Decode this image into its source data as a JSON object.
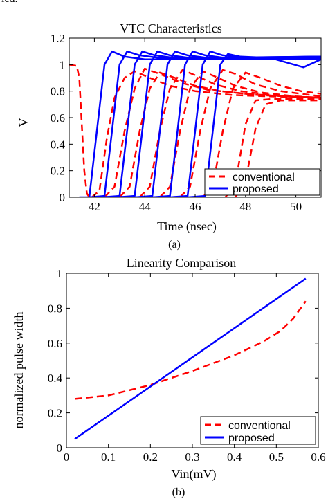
{
  "page": {
    "crop_text": "ied."
  },
  "chart_data": [
    {
      "type": "line",
      "title": "VTC Characteristics",
      "xlabel": "Time (nsec)",
      "ylabel": "V",
      "caption": "(a)",
      "xlim": [
        41,
        51
      ],
      "ylim": [
        0,
        1.2
      ],
      "xticks": [
        42,
        44,
        46,
        48,
        50
      ],
      "yticks": [
        0,
        0.2,
        0.4,
        0.6,
        0.8,
        1,
        1.2
      ],
      "xtick_labels": [
        "42",
        "44",
        "46",
        "48",
        "50"
      ],
      "ytick_labels": [
        "0",
        "0.2",
        "0.4",
        "0.6",
        "0.8",
        "1",
        "1.2"
      ],
      "legend": {
        "position": "bottom-right",
        "entries": [
          "conventional",
          "proposed"
        ]
      },
      "grid": false,
      "series": [
        {
          "name": "conventional",
          "color": "#ff0000",
          "dash": true,
          "curves": [
            [
              [
                41.0,
                1.0
              ],
              [
                41.3,
                0.99
              ],
              [
                41.4,
                0.9
              ],
              [
                41.5,
                0.55
              ],
              [
                41.6,
                0.2
              ],
              [
                41.7,
                0.03
              ],
              [
                41.8,
                0.0
              ],
              [
                41.9,
                0.0
              ]
            ],
            [
              [
                41.9,
                0.0
              ],
              [
                42.2,
                0.05
              ],
              [
                42.5,
                0.45
              ],
              [
                42.8,
                0.75
              ],
              [
                43.2,
                0.9
              ],
              [
                43.6,
                0.95
              ],
              [
                44.2,
                0.9
              ],
              [
                45.0,
                0.84
              ],
              [
                46.0,
                0.8
              ],
              [
                47.5,
                0.77
              ],
              [
                49.0,
                0.76
              ],
              [
                51.0,
                0.75
              ]
            ],
            [
              [
                42.4,
                0.0
              ],
              [
                42.8,
                0.08
              ],
              [
                43.2,
                0.5
              ],
              [
                43.6,
                0.82
              ],
              [
                44.0,
                0.97
              ],
              [
                44.6,
                0.93
              ],
              [
                45.5,
                0.86
              ],
              [
                46.5,
                0.81
              ],
              [
                48.0,
                0.78
              ],
              [
                49.5,
                0.76
              ],
              [
                51.0,
                0.75
              ]
            ],
            [
              [
                43.0,
                0.0
              ],
              [
                43.4,
                0.08
              ],
              [
                43.8,
                0.5
              ],
              [
                44.2,
                0.82
              ],
              [
                44.6,
                0.94
              ],
              [
                45.2,
                0.9
              ],
              [
                46.0,
                0.84
              ],
              [
                47.0,
                0.8
              ],
              [
                48.5,
                0.77
              ],
              [
                51.0,
                0.75
              ]
            ],
            [
              [
                43.8,
                0.0
              ],
              [
                44.2,
                0.08
              ],
              [
                44.6,
                0.5
              ],
              [
                45.0,
                0.82
              ],
              [
                45.5,
                0.96
              ],
              [
                46.0,
                0.92
              ],
              [
                46.8,
                0.85
              ],
              [
                47.8,
                0.8
              ],
              [
                49.5,
                0.76
              ],
              [
                51.0,
                0.75
              ]
            ],
            [
              [
                44.6,
                0.0
              ],
              [
                45.0,
                0.08
              ],
              [
                45.4,
                0.5
              ],
              [
                45.8,
                0.82
              ],
              [
                46.3,
                0.95
              ],
              [
                46.8,
                0.91
              ],
              [
                47.6,
                0.84
              ],
              [
                48.6,
                0.79
              ],
              [
                50.0,
                0.76
              ],
              [
                51.0,
                0.75
              ]
            ],
            [
              [
                45.4,
                0.0
              ],
              [
                45.8,
                0.08
              ],
              [
                46.2,
                0.5
              ],
              [
                46.6,
                0.82
              ],
              [
                47.1,
                0.96
              ],
              [
                47.6,
                0.93
              ],
              [
                48.4,
                0.85
              ],
              [
                49.4,
                0.8
              ],
              [
                51.0,
                0.76
              ]
            ],
            [
              [
                46.3,
                0.0
              ],
              [
                46.7,
                0.08
              ],
              [
                47.1,
                0.5
              ],
              [
                47.5,
                0.82
              ],
              [
                48.0,
                0.94
              ],
              [
                48.6,
                0.9
              ],
              [
                49.4,
                0.84
              ],
              [
                50.2,
                0.8
              ],
              [
                51.0,
                0.78
              ]
            ],
            [
              [
                47.2,
                0.0
              ],
              [
                47.6,
                0.1
              ],
              [
                48.0,
                0.55
              ],
              [
                48.4,
                0.73
              ],
              [
                49.0,
                0.74
              ],
              [
                51.0,
                0.74
              ]
            ],
            [
              [
                47.6,
                0.0
              ],
              [
                48.0,
                0.12
              ],
              [
                48.4,
                0.52
              ],
              [
                48.8,
                0.7
              ],
              [
                49.4,
                0.73
              ],
              [
                51.0,
                0.73
              ]
            ]
          ]
        },
        {
          "name": "proposed",
          "color": "#0000ff",
          "dash": false,
          "curves": [
            [
              [
                41.4,
                0.0
              ],
              [
                41.8,
                0.0
              ],
              [
                42.1,
                0.5
              ],
              [
                42.4,
                1.0
              ],
              [
                42.7,
                1.1
              ],
              [
                43.2,
                1.06
              ],
              [
                44.0,
                1.04
              ],
              [
                51.0,
                1.04
              ]
            ],
            [
              [
                41.8,
                0.0
              ],
              [
                42.4,
                0.01
              ],
              [
                42.7,
                0.5
              ],
              [
                43.0,
                1.0
              ],
              [
                43.3,
                1.1
              ],
              [
                43.8,
                1.07
              ],
              [
                44.6,
                1.05
              ],
              [
                51.0,
                1.05
              ]
            ],
            [
              [
                42.3,
                0.0
              ],
              [
                43.0,
                0.01
              ],
              [
                43.3,
                0.5
              ],
              [
                43.6,
                1.0
              ],
              [
                43.9,
                1.1
              ],
              [
                44.4,
                1.07
              ],
              [
                45.2,
                1.05
              ],
              [
                51.0,
                1.05
              ]
            ],
            [
              [
                42.9,
                0.0
              ],
              [
                43.6,
                0.01
              ],
              [
                43.9,
                0.5
              ],
              [
                44.2,
                1.0
              ],
              [
                44.5,
                1.1
              ],
              [
                45.0,
                1.07
              ],
              [
                45.8,
                1.05
              ],
              [
                51.0,
                1.06
              ]
            ],
            [
              [
                43.6,
                0.0
              ],
              [
                44.3,
                0.01
              ],
              [
                44.6,
                0.5
              ],
              [
                44.9,
                1.0
              ],
              [
                45.2,
                1.1
              ],
              [
                45.7,
                1.07
              ],
              [
                46.5,
                1.05
              ],
              [
                51.0,
                1.06
              ]
            ],
            [
              [
                44.3,
                0.0
              ],
              [
                45.0,
                0.01
              ],
              [
                45.3,
                0.5
              ],
              [
                45.6,
                1.0
              ],
              [
                45.9,
                1.1
              ],
              [
                46.4,
                1.07
              ],
              [
                47.2,
                1.05
              ],
              [
                51.0,
                1.06
              ]
            ],
            [
              [
                45.0,
                0.0
              ],
              [
                45.7,
                0.01
              ],
              [
                46.0,
                0.5
              ],
              [
                46.3,
                1.0
              ],
              [
                46.6,
                1.1
              ],
              [
                47.1,
                1.07
              ],
              [
                48.0,
                1.05
              ],
              [
                51.0,
                1.06
              ]
            ],
            [
              [
                45.7,
                0.0
              ],
              [
                46.4,
                0.01
              ],
              [
                46.7,
                0.5
              ],
              [
                47.0,
                1.0
              ],
              [
                47.3,
                1.08
              ],
              [
                47.8,
                1.06
              ],
              [
                49.0,
                1.05
              ],
              [
                50.3,
                0.98
              ],
              [
                51.0,
                1.04
              ]
            ]
          ]
        }
      ]
    },
    {
      "type": "line",
      "title": "Linearity Comparison",
      "xlabel": "Vin(mV)",
      "ylabel": "normalized pulse width",
      "caption": "(b)",
      "xlim": [
        0,
        0.6
      ],
      "ylim": [
        0,
        1
      ],
      "xticks": [
        0,
        0.1,
        0.2,
        0.3,
        0.4,
        0.5,
        0.6
      ],
      "yticks": [
        0,
        0.2,
        0.4,
        0.6,
        0.8,
        1
      ],
      "xtick_labels": [
        "0",
        "0.1",
        "0.2",
        "0.3",
        "0.4",
        "0.5",
        "0.6"
      ],
      "ytick_labels": [
        "0",
        "0.2",
        "0.4",
        "0.6",
        "0.8",
        "1"
      ],
      "legend": {
        "position": "bottom-right",
        "entries": [
          "conventional",
          "proposed"
        ]
      },
      "grid": false,
      "series": [
        {
          "name": "conventional",
          "color": "#ff0000",
          "dash": true,
          "curves": [
            [
              [
                0.02,
                0.28
              ],
              [
                0.1,
                0.3
              ],
              [
                0.2,
                0.36
              ],
              [
                0.3,
                0.44
              ],
              [
                0.4,
                0.53
              ],
              [
                0.47,
                0.61
              ],
              [
                0.51,
                0.67
              ],
              [
                0.54,
                0.74
              ],
              [
                0.57,
                0.84
              ]
            ]
          ]
        },
        {
          "name": "proposed",
          "color": "#0000ff",
          "dash": false,
          "curves": [
            [
              [
                0.02,
                0.05
              ],
              [
                0.57,
                0.97
              ]
            ]
          ]
        }
      ]
    }
  ]
}
